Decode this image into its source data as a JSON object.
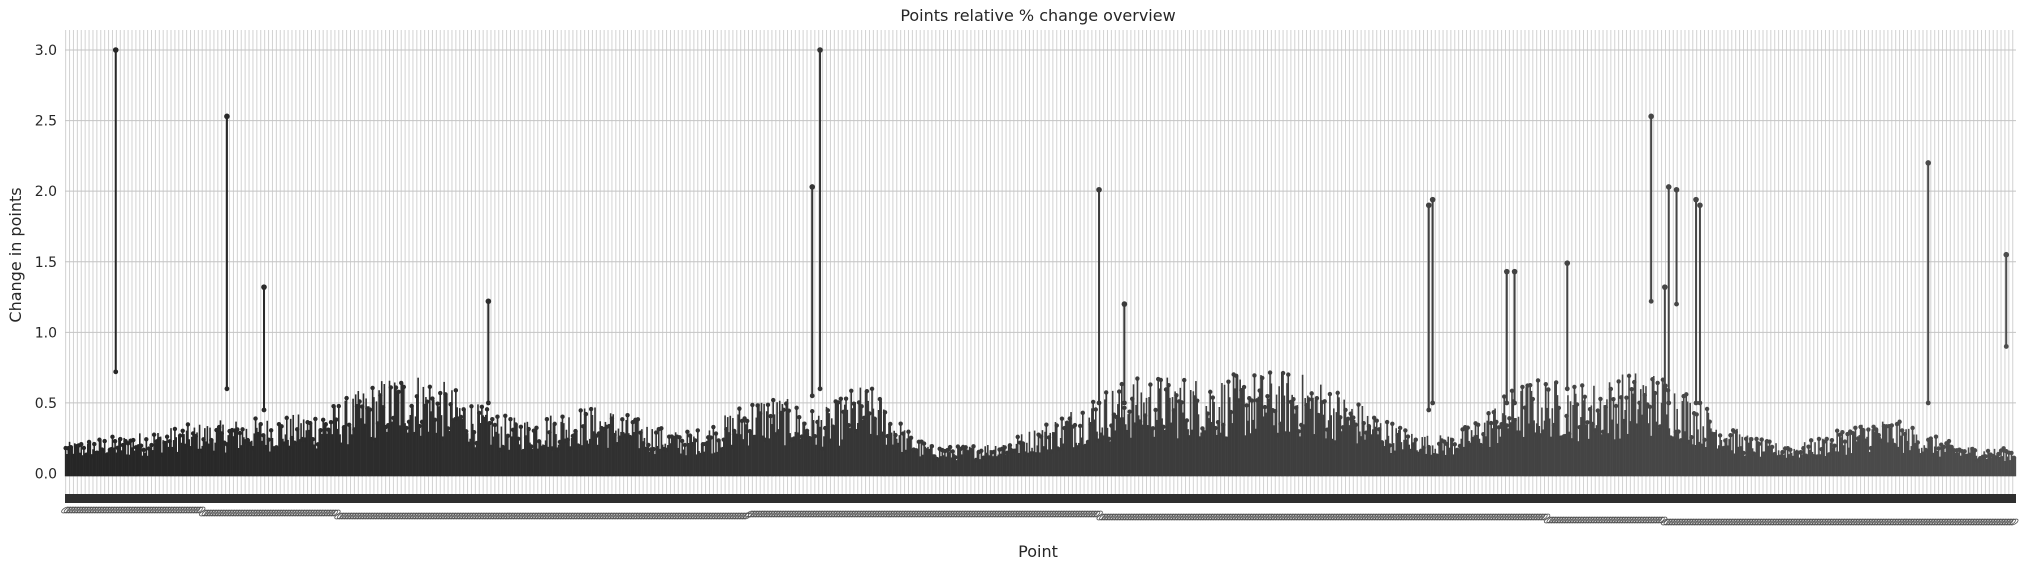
{
  "chart_data": {
    "type": "scatter",
    "subtype": "point-plot-with-error-bars",
    "title": "Points relative % change overview",
    "xlabel": "Point",
    "ylabel": "Change in points",
    "ylim": [
      -0.1,
      3.15
    ],
    "yticks": [
      0.0,
      0.5,
      1.0,
      1.5,
      2.0,
      2.5,
      3.0
    ],
    "ytick_labels": [
      "0.0",
      "0.5",
      "1.0",
      "1.5",
      "2.0",
      "2.5",
      "3.0"
    ],
    "grid": true,
    "point_count": 1500,
    "x_tick_labels_legible": false,
    "colors": {
      "background": "#ffffff",
      "plot_area": "#ffffff",
      "grid": "#d2d2d2",
      "marker_start": "#262626",
      "marker_end": "#4d4d4d"
    },
    "peaks": [
      {
        "position": 0.026,
        "high": 3.0,
        "low": 0.72
      },
      {
        "position": 0.083,
        "high": 2.53,
        "low": 0.6
      },
      {
        "position": 0.102,
        "high": 1.32,
        "low": 0.45
      },
      {
        "position": 0.217,
        "high": 1.22,
        "low": 0.5
      },
      {
        "position": 0.383,
        "high": 2.03,
        "low": 0.55
      },
      {
        "position": 0.387,
        "high": 3.0,
        "low": 0.6
      },
      {
        "position": 0.53,
        "high": 2.01,
        "low": 0.5
      },
      {
        "position": 0.543,
        "high": 1.2,
        "low": 0.5
      },
      {
        "position": 0.699,
        "high": 1.9,
        "low": 0.45
      },
      {
        "position": 0.701,
        "high": 1.94,
        "low": 0.5
      },
      {
        "position": 0.739,
        "high": 1.43,
        "low": 0.5
      },
      {
        "position": 0.743,
        "high": 1.43,
        "low": 0.5
      },
      {
        "position": 0.77,
        "high": 1.49,
        "low": 0.6
      },
      {
        "position": 0.813,
        "high": 2.53,
        "low": 1.22
      },
      {
        "position": 0.82,
        "high": 1.32,
        "low": 0.6
      },
      {
        "position": 0.822,
        "high": 2.03,
        "low": 0.5
      },
      {
        "position": 0.826,
        "high": 2.01,
        "low": 1.2
      },
      {
        "position": 0.836,
        "high": 1.94,
        "low": 0.5
      },
      {
        "position": 0.838,
        "high": 1.9,
        "low": 0.5
      },
      {
        "position": 0.955,
        "high": 2.2,
        "low": 0.5
      },
      {
        "position": 0.995,
        "high": 1.55,
        "low": 0.9
      }
    ]
  }
}
